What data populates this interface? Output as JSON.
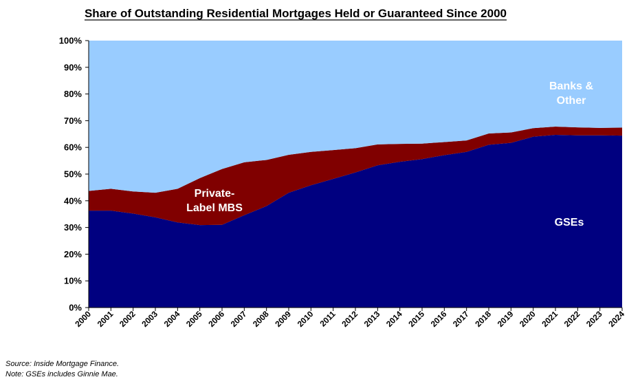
{
  "chart_data": {
    "type": "area",
    "stacked": true,
    "title": "Share of Outstanding Residential Mortgages Held or Guaranteed Since 2000",
    "x": [
      "2000",
      "2001",
      "2002",
      "2003",
      "2004",
      "2005",
      "2006",
      "2007",
      "2008",
      "2009",
      "2010",
      "2011",
      "2012",
      "2013",
      "2014",
      "2015",
      "2016",
      "2017",
      "2018",
      "2019",
      "2020",
      "2021",
      "2022",
      "2023",
      "2024"
    ],
    "ylim": [
      0,
      100
    ],
    "yticks": [
      "0%",
      "10%",
      "20%",
      "30%",
      "40%",
      "50%",
      "60%",
      "70%",
      "80%",
      "90%",
      "100%"
    ],
    "grid": false,
    "series": [
      {
        "name": "GSEs",
        "color": "#000080",
        "label_color": "#ffffff",
        "values": [
          36.3,
          36.3,
          35.2,
          33.8,
          31.9,
          30.9,
          31.0,
          34.6,
          38.0,
          43.0,
          45.8,
          48.2,
          50.6,
          53.3,
          54.6,
          55.6,
          57.1,
          58.3,
          61.0,
          61.7,
          64.0,
          64.7,
          64.5,
          64.5,
          64.4
        ]
      },
      {
        "name": "Private-Label MBS",
        "name_lines": [
          "Private-",
          "Label MBS"
        ],
        "color": "#800000",
        "label_color": "#ffffff",
        "values": [
          7.4,
          8.2,
          8.3,
          9.2,
          12.6,
          17.6,
          20.9,
          19.8,
          17.3,
          14.2,
          12.5,
          10.8,
          9.1,
          7.8,
          6.7,
          5.8,
          4.9,
          4.3,
          4.2,
          3.9,
          3.2,
          3.1,
          3.0,
          2.8,
          3.0
        ]
      },
      {
        "name": "Banks & Other",
        "name_lines": [
          "Banks &",
          "Other"
        ],
        "color": "#99CCFF",
        "label_color": "#ffffff",
        "values": [
          56.3,
          55.5,
          56.5,
          57.0,
          55.5,
          51.5,
          48.1,
          45.6,
          44.7,
          42.8,
          41.7,
          41.0,
          40.3,
          38.9,
          38.7,
          38.6,
          38.0,
          37.4,
          34.8,
          34.4,
          32.8,
          32.2,
          32.5,
          32.7,
          32.6
        ]
      }
    ]
  },
  "notes": {
    "source": "Source: Inside Mortgage Finance.",
    "note": "Note: GSEs includes Ginnie Mae."
  }
}
